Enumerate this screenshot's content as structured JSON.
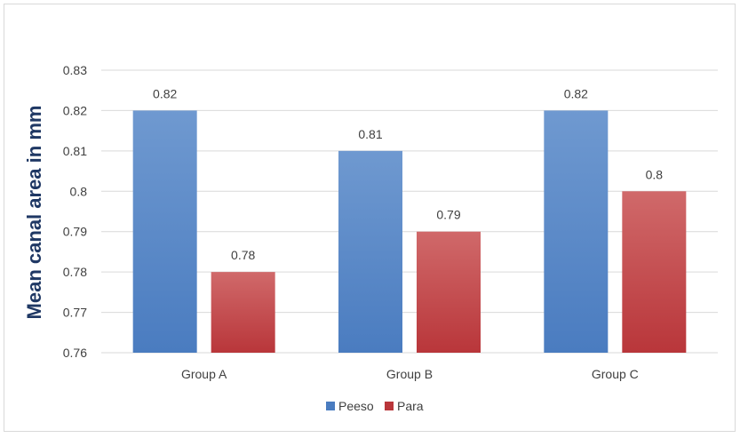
{
  "chart_data": {
    "type": "bar",
    "title": "",
    "xlabel": "",
    "ylabel": "Mean canal area in mm",
    "categories": [
      "Group A",
      "Group B",
      "Group C"
    ],
    "series": [
      {
        "name": "Peeso",
        "values": [
          0.82,
          0.81,
          0.82
        ],
        "color": "#4a7cc0",
        "color_light": "#6f99d0"
      },
      {
        "name": "Para",
        "values": [
          0.78,
          0.79,
          0.8
        ],
        "color": "#b9363a",
        "color_light": "#d0696a"
      }
    ],
    "data_labels": [
      [
        "0.82",
        "0.81",
        "0.82"
      ],
      [
        "0.78",
        "0.79",
        "0.8"
      ]
    ],
    "ylim": [
      0.76,
      0.83
    ],
    "yticks": [
      0.76,
      0.77,
      0.78,
      0.79,
      0.8,
      0.81,
      0.82,
      0.83
    ],
    "ytick_labels": [
      "0.76",
      "0.77",
      "0.78",
      "0.79",
      "0.8",
      "0.81",
      "0.82",
      "0.83"
    ],
    "grid": true,
    "legend_position": "bottom"
  }
}
